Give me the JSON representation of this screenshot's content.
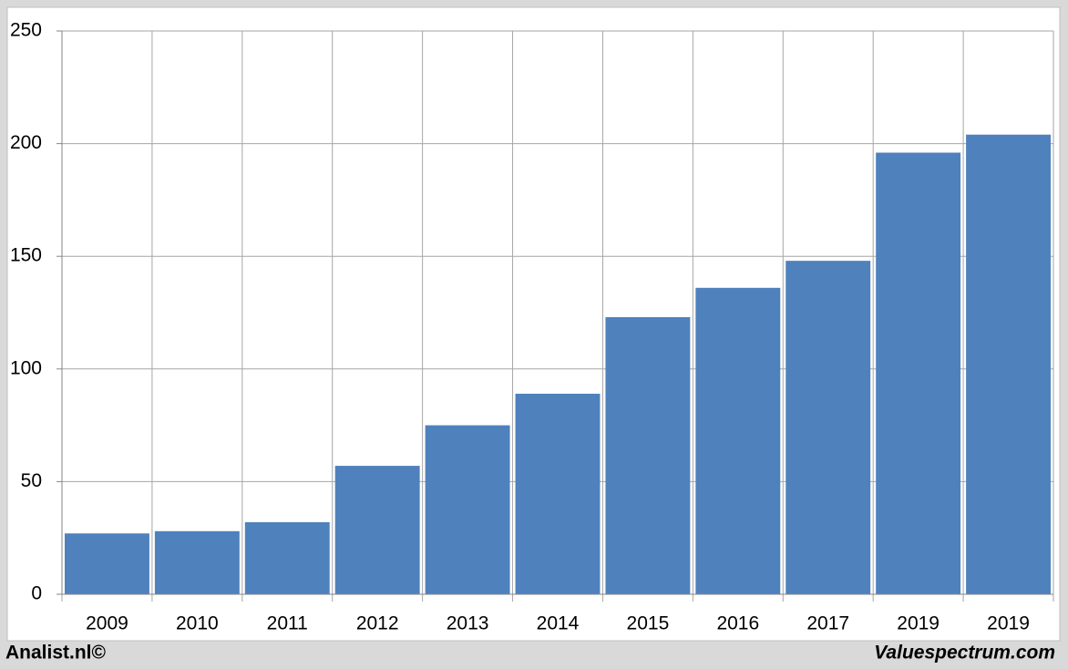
{
  "chart_data": {
    "type": "bar",
    "categories": [
      "2009",
      "2010",
      "2011",
      "2012",
      "2013",
      "2014",
      "2015",
      "2016",
      "2017",
      "2019",
      "2019"
    ],
    "values": [
      27,
      28,
      32,
      57,
      75,
      89,
      123,
      136,
      148,
      196,
      204
    ],
    "color": "#4f81bd",
    "ylim": [
      0,
      250
    ],
    "yticks": [
      0,
      50,
      100,
      150,
      200,
      250
    ],
    "grid": true,
    "credits": [
      "Analist.nl©",
      "Valuespectrum.com"
    ]
  }
}
